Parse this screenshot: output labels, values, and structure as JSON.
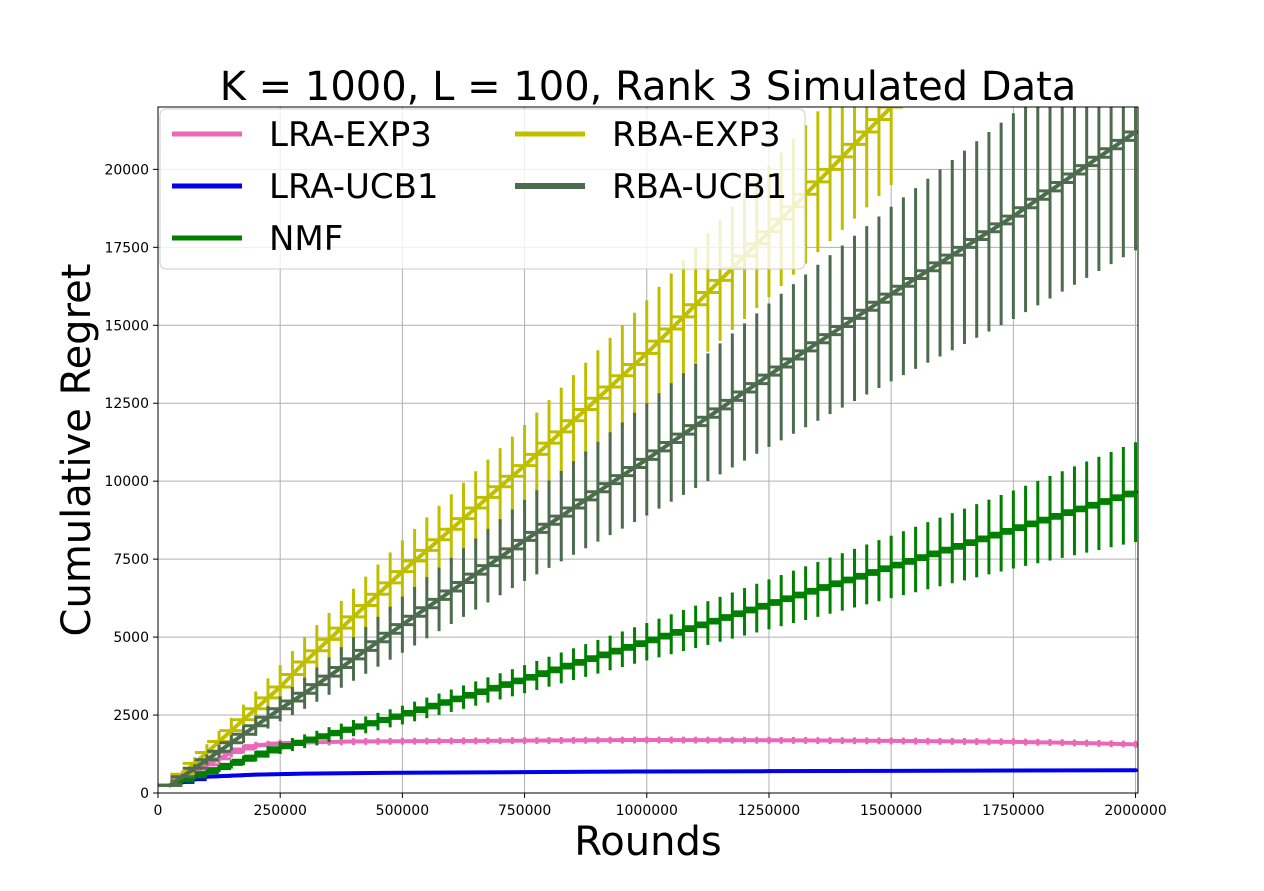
{
  "chart_data": {
    "type": "line",
    "title": "K = 1000, L = 100, Rank 3 Simulated Data",
    "xlabel": "Rounds",
    "ylabel": "Cumulative Regret",
    "xlim": [
      0,
      2005000
    ],
    "ylim": [
      0,
      22000
    ],
    "xticks": [
      0,
      250000,
      500000,
      750000,
      1000000,
      1250000,
      1500000,
      1750000,
      2000000
    ],
    "xtick_labels": [
      "0",
      "250000",
      "500000",
      "750000",
      "1000000",
      "1250000",
      "1500000",
      "1750000",
      "2000000"
    ],
    "yticks": [
      0,
      2500,
      5000,
      7500,
      10000,
      12500,
      15000,
      17500,
      20000
    ],
    "ytick_labels": [
      "0",
      "2500",
      "5000",
      "7500",
      "10000",
      "12500",
      "15000",
      "17500",
      "20000"
    ],
    "grid": true,
    "legend_placement": "top-left",
    "legend_columns": 2,
    "error_bars": true,
    "series": [
      {
        "name": "LRA-EXP3",
        "color": "#e969b8",
        "x": [
          25000,
          100000,
          150000,
          200000,
          250000,
          300000,
          400000,
          500000,
          750000,
          1000000,
          1250000,
          1500000,
          1750000,
          1900000,
          2000000
        ],
        "y": [
          250,
          900,
          1300,
          1520,
          1600,
          1620,
          1650,
          1660,
          1680,
          1700,
          1690,
          1670,
          1640,
          1600,
          1560
        ],
        "yerr": [
          50,
          150,
          150,
          120,
          110,
          110,
          110,
          110,
          110,
          110,
          110,
          110,
          110,
          110,
          110
        ]
      },
      {
        "name": "LRA-UCB1",
        "color": "#0000ee",
        "x": [
          25000,
          100000,
          200000,
          300000,
          500000,
          750000,
          1000000,
          1250000,
          1500000,
          1750000,
          2000000
        ],
        "y": [
          250,
          520,
          590,
          620,
          650,
          670,
          690,
          700,
          710,
          720,
          730
        ],
        "yerr": [
          30,
          50,
          50,
          50,
          50,
          50,
          50,
          50,
          50,
          50,
          50
        ]
      },
      {
        "name": "NMF",
        "color": "#007f00",
        "x": [
          25000,
          250000,
          500000,
          750000,
          1000000,
          1250000,
          1500000,
          1750000,
          2000000
        ],
        "y": [
          250,
          1450,
          2500,
          3650,
          4850,
          6050,
          7250,
          8450,
          9650
        ],
        "yerr": [
          50,
          200,
          300,
          450,
          600,
          800,
          1000,
          1250,
          1600
        ]
      },
      {
        "name": "RBA-EXP3",
        "color": "#bfbf00",
        "x": [
          25000,
          250000,
          300000,
          500000,
          750000,
          1000000,
          1250000,
          1500000
        ],
        "y": [
          250,
          3400,
          4200,
          7100,
          10500,
          14100,
          18000,
          22000
        ],
        "yerr": [
          50,
          700,
          800,
          1000,
          1300,
          1700,
          2100,
          2500
        ]
      },
      {
        "name": "RBA-UCB1",
        "color": "#4d6b4d",
        "x": [
          25000,
          250000,
          300000,
          500000,
          750000,
          1000000,
          1250000,
          1500000,
          1750000,
          2000000
        ],
        "y": [
          250,
          2700,
          3200,
          5400,
          8100,
          10700,
          13400,
          16000,
          18500,
          21200
        ],
        "yerr": [
          50,
          400,
          500,
          900,
          1300,
          1800,
          2300,
          2800,
          3300,
          3800
        ]
      }
    ]
  }
}
